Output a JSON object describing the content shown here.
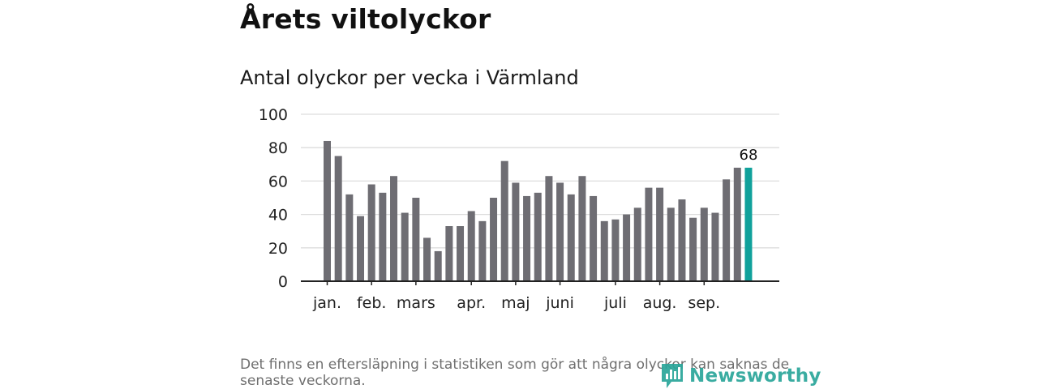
{
  "header": {
    "title": "Årets viltolyckor",
    "subtitle": "Antal olyckor per vecka i Värmland"
  },
  "footer": {
    "note": "Det finns en eftersläpning i statistiken som gör att några olyckor kan saknas de senaste veckorna.",
    "brand": "Newsworthy",
    "brand_icon": "newsworthy-logo-icon"
  },
  "colors": {
    "bar": "#6e6d73",
    "highlight": "#10a19b",
    "grid": "#dddddd",
    "axis": "#222222",
    "brand": "#2aa69a"
  },
  "chart_data": {
    "type": "bar",
    "title": "Antal olyckor per vecka i Värmland",
    "xlabel": "",
    "ylabel": "",
    "ylim": [
      0,
      100
    ],
    "yticks": [
      0,
      20,
      40,
      60,
      80,
      100
    ],
    "grid": true,
    "values": [
      84,
      75,
      52,
      39,
      58,
      53,
      63,
      41,
      50,
      26,
      18,
      33,
      33,
      42,
      36,
      50,
      72,
      59,
      51,
      53,
      63,
      59,
      52,
      63,
      51,
      36,
      37,
      40,
      44,
      56,
      56,
      44,
      49,
      38,
      44,
      41,
      61,
      68,
      68
    ],
    "highlight_index": 38,
    "data_label": {
      "index": 38,
      "text": "68"
    },
    "month_labels": [
      {
        "label": "jan.",
        "bar": 0
      },
      {
        "label": "feb.",
        "bar": 4
      },
      {
        "label": "mars",
        "bar": 8
      },
      {
        "label": "apr.",
        "bar": 13
      },
      {
        "label": "maj",
        "bar": 17
      },
      {
        "label": "juni",
        "bar": 21
      },
      {
        "label": "juli",
        "bar": 26
      },
      {
        "label": "aug.",
        "bar": 30
      },
      {
        "label": "sep.",
        "bar": 34
      }
    ]
  }
}
